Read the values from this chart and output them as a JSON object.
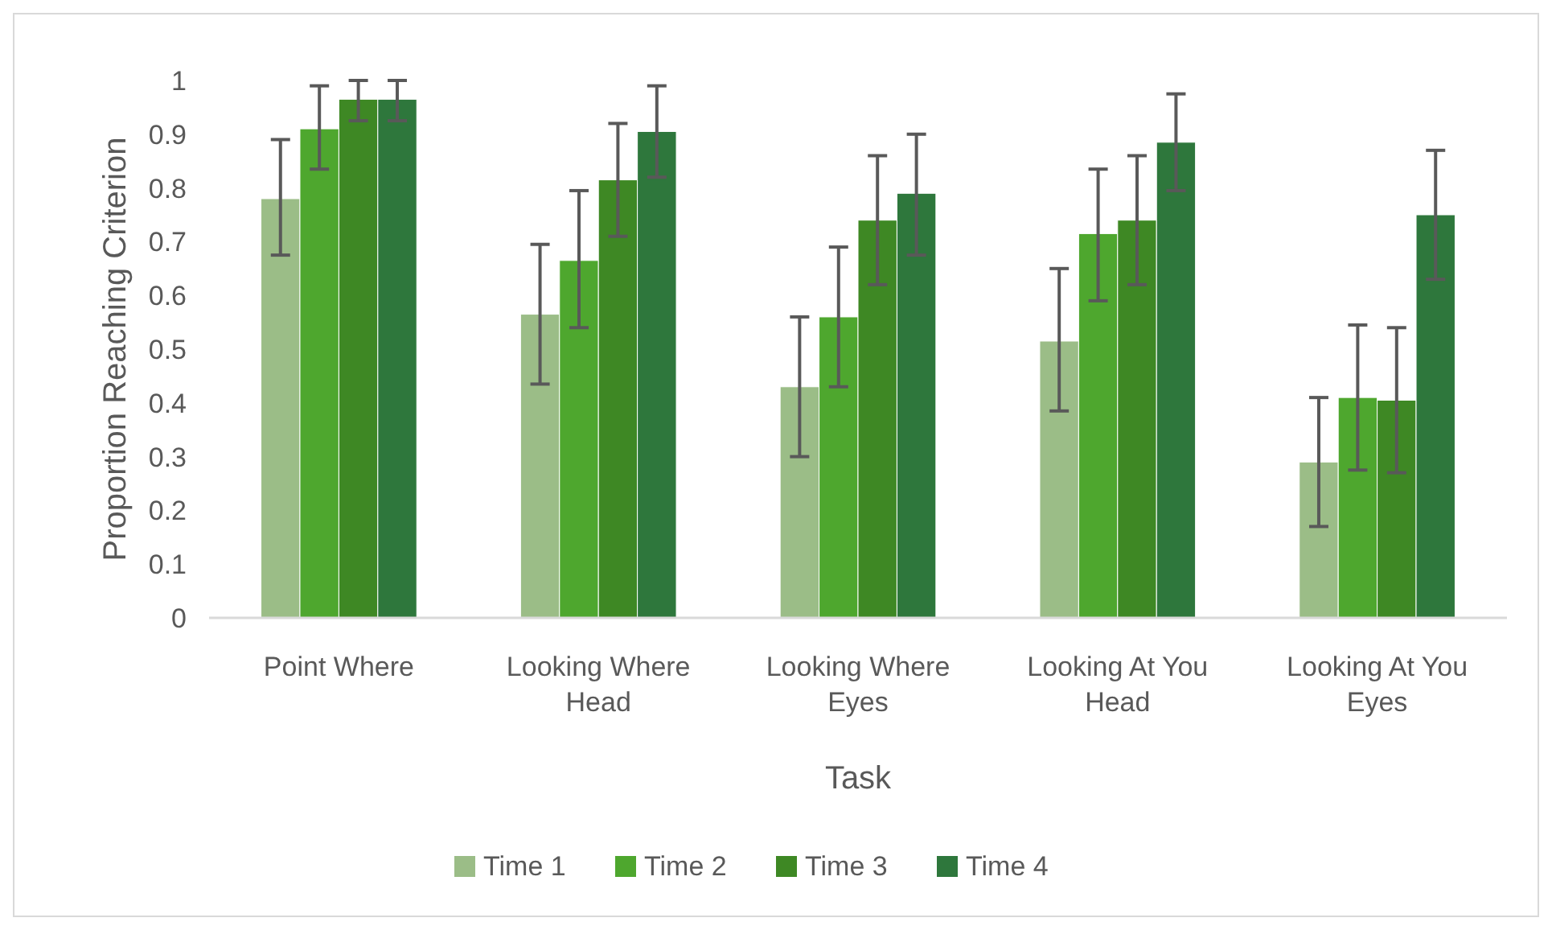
{
  "chart_data": {
    "type": "bar",
    "xlabel": "Task",
    "ylabel": "Proportion Reaching Criterion",
    "categories": [
      "Point Where",
      "Looking Where Head",
      "Looking Where Eyes",
      "Looking At You Head",
      "Looking At You Eyes"
    ],
    "series": [
      {
        "name": "Time 1",
        "color": "#9bbd87",
        "values": [
          0.78,
          0.565,
          0.43,
          0.515,
          0.29
        ],
        "errors": [
          [
            0.675,
            0.89
          ],
          [
            0.435,
            0.695
          ],
          [
            0.3,
            0.56
          ],
          [
            0.385,
            0.65
          ],
          [
            0.17,
            0.41
          ]
        ]
      },
      {
        "name": "Time 2",
        "color": "#4ea72e",
        "values": [
          0.91,
          0.665,
          0.56,
          0.715,
          0.41
        ],
        "errors": [
          [
            0.835,
            0.99
          ],
          [
            0.54,
            0.795
          ],
          [
            0.43,
            0.69
          ],
          [
            0.59,
            0.835
          ],
          [
            0.275,
            0.545
          ]
        ]
      },
      {
        "name": "Time 3",
        "color": "#3e8824",
        "values": [
          0.965,
          0.815,
          0.74,
          0.74,
          0.405
        ],
        "errors": [
          [
            0.925,
            1.0
          ],
          [
            0.71,
            0.92
          ],
          [
            0.62,
            0.86
          ],
          [
            0.62,
            0.86
          ],
          [
            0.27,
            0.54
          ]
        ]
      },
      {
        "name": "Time 4",
        "color": "#2e773c",
        "values": [
          0.965,
          0.905,
          0.79,
          0.885,
          0.75
        ],
        "errors": [
          [
            0.925,
            1.0
          ],
          [
            0.82,
            0.99
          ],
          [
            0.675,
            0.9
          ],
          [
            0.795,
            0.975
          ],
          [
            0.63,
            0.87
          ]
        ]
      }
    ],
    "ylim": [
      0,
      1
    ],
    "yticks": [
      0,
      0.1,
      0.2,
      0.3,
      0.4,
      0.5,
      0.6,
      0.7,
      0.8,
      0.9,
      1
    ],
    "grid": false,
    "legend": "bottom"
  }
}
